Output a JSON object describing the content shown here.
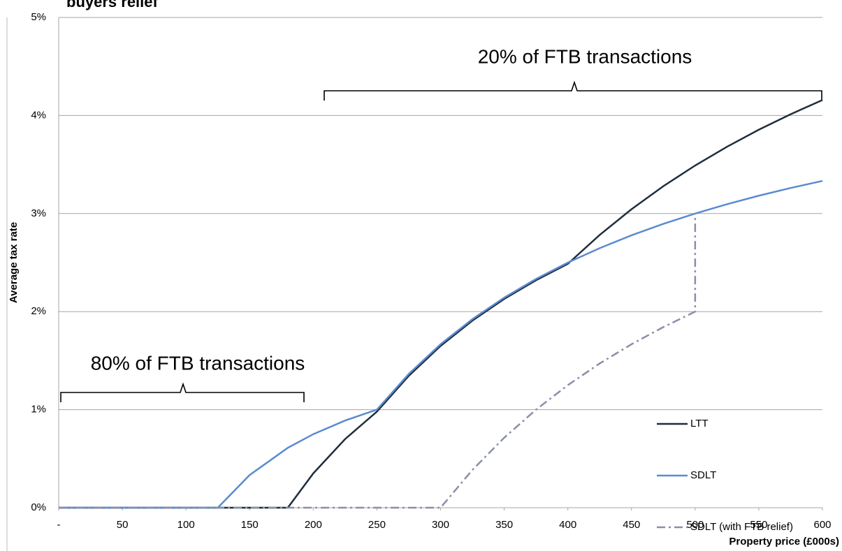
{
  "chart_data": {
    "type": "line",
    "title": "buyers relief",
    "xlabel": "Property price (£000s)",
    "ylabel": "Average tax rate",
    "annotations": [
      "20% of FTB transactions",
      "80% of FTB transactions"
    ],
    "x": [
      0,
      50,
      100,
      125,
      150,
      180,
      200,
      225,
      250,
      275,
      300,
      325,
      350,
      375,
      400,
      425,
      450,
      475,
      500,
      525,
      550,
      575,
      600
    ],
    "series": [
      {
        "name": "LTT",
        "color": "#1f2d3d",
        "linestyle": "solid",
        "values": [
          0,
          0,
          0,
          0,
          0,
          0,
          0.35,
          0.7,
          0.98,
          1.345,
          1.65,
          1.908,
          2.129,
          2.32,
          2.4875,
          2.782,
          3.044,
          3.279,
          3.49,
          3.681,
          3.855,
          4.013,
          4.158
        ]
      },
      {
        "name": "SDLT",
        "color": "#5b8bd0",
        "linestyle": "solid",
        "values": [
          0,
          0,
          0,
          0,
          0.333,
          0.611,
          0.75,
          0.889,
          1.0,
          1.364,
          1.667,
          1.923,
          2.143,
          2.333,
          2.5,
          2.647,
          2.778,
          2.895,
          3.0,
          3.095,
          3.182,
          3.261,
          3.333
        ]
      },
      {
        "name": "SDLT (with FTB relief)",
        "color": "#8a8fa8",
        "linestyle": "dashdot",
        "x": [
          0,
          300,
          325,
          350,
          375,
          400,
          425,
          450,
          475,
          500,
          500
        ],
        "values": [
          0,
          0,
          0.385,
          0.714,
          1.0,
          1.25,
          1.471,
          1.667,
          1.842,
          2.0,
          3.0
        ]
      }
    ],
    "xlim": [
      0,
      600
    ],
    "xticks": [
      {
        "value": 0,
        "label": "-"
      },
      50,
      100,
      150,
      200,
      250,
      300,
      350,
      400,
      450,
      500,
      550,
      600
    ],
    "ylim": [
      0,
      5
    ],
    "yticks": [
      {
        "value": 0,
        "label": "0%"
      },
      {
        "value": 1,
        "label": "1%"
      },
      {
        "value": 2,
        "label": "2%"
      },
      {
        "value": 3,
        "label": "3%"
      },
      {
        "value": 4,
        "label": "4%"
      },
      {
        "value": 5,
        "label": "5%"
      }
    ],
    "grid": true,
    "legend": "lower right"
  }
}
